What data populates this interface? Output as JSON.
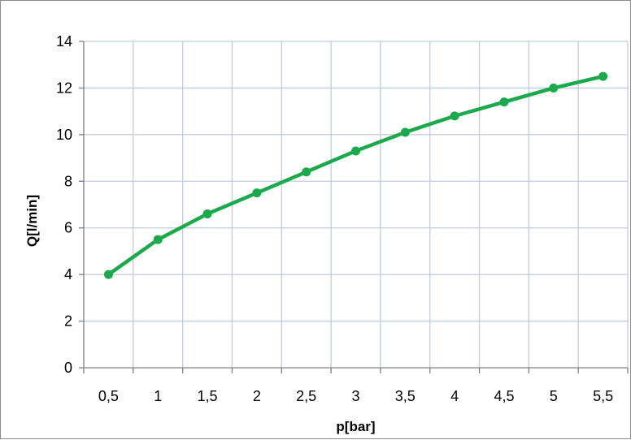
{
  "chart_data": {
    "type": "line",
    "title": "",
    "xlabel": "p[bar]",
    "ylabel": "Q[l/min]",
    "categories": [
      "0,5",
      "1",
      "1,5",
      "2",
      "2,5",
      "3",
      "3,5",
      "4",
      "4,5",
      "5",
      "5,5"
    ],
    "series": [
      {
        "values": [
          4.0,
          5.5,
          6.6,
          7.5,
          8.4,
          9.3,
          10.1,
          10.8,
          11.4,
          12.0,
          12.5
        ]
      }
    ],
    "ylim": [
      0,
      14
    ],
    "yticks": [
      0,
      2,
      4,
      6,
      8,
      10,
      12,
      14
    ],
    "grid": true,
    "legend": "none",
    "colors": {
      "line": "#1aaa4c",
      "grid": "#c0cbe0",
      "axis": "#808080",
      "frame": "#8c8c8c"
    }
  }
}
